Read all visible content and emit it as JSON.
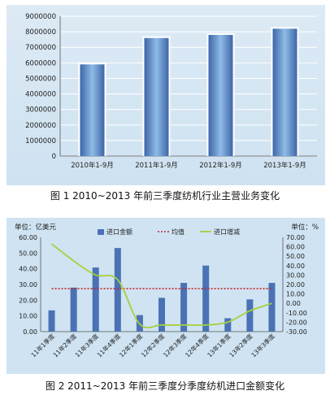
{
  "colors": {
    "panel_bg": "#d3e5f3",
    "bar_blue": "#4a72b4",
    "bar_gradient_light": "#8ebbe6",
    "avg_line": "#c0282e",
    "growth_line": "#a6d03c",
    "axis_text": "#222222"
  },
  "figure1": {
    "caption": "图 1  2010~2013 年前三季度纺机行业主营业务变化",
    "chart_data": {
      "type": "bar",
      "categories": [
        "2010年1-9月",
        "2011年1-9月",
        "2012年1-9月",
        "2013年1-9月"
      ],
      "values": [
        5900000,
        7600000,
        7800000,
        8200000
      ],
      "ylim": [
        0,
        9000000
      ],
      "yticks": [
        "0",
        "1000000",
        "2000000",
        "3000000",
        "4000000",
        "5000000",
        "6000000",
        "7000000",
        "8000000",
        "9000000"
      ],
      "grid": true,
      "legend": "none"
    }
  },
  "figure2": {
    "caption": "图 2  2011~2013 年前三季度分季度纺机进口金额变化",
    "left_unit": "单位：亿美元",
    "right_unit": "单位：%",
    "chart_data": {
      "type": "bar",
      "categories": [
        "11年1季度",
        "11年2季度",
        "11年3季度",
        "11年4季度",
        "12年1季度",
        "12年2季度",
        "12年3季度",
        "12年4季度",
        "13年1季度",
        "13年2季度",
        "13年3季度"
      ],
      "series": [
        {
          "name": "进口金额",
          "type": "bar",
          "axis": "left",
          "values": [
            13.5,
            28.0,
            40.8,
            53.2,
            10.5,
            21.5,
            31.0,
            42.0,
            8.5,
            20.5,
            31.0
          ]
        },
        {
          "name": "均值",
          "type": "line",
          "axis": "left",
          "style": "dotted",
          "values": [
            27.3,
            27.3,
            27.3,
            27.3,
            27.3,
            27.3,
            27.3,
            27.3,
            27.3,
            27.3,
            27.3
          ]
        },
        {
          "name": "进口增减",
          "type": "line",
          "axis": "right",
          "values": [
            63.0,
            45.0,
            30.0,
            25.0,
            -22.0,
            -23.0,
            -23.0,
            -23.0,
            -20.0,
            -8.0,
            0.0
          ]
        }
      ],
      "ylim_left": [
        0,
        60
      ],
      "ylim_right": [
        -30,
        70
      ],
      "yticks_left": [
        "0.00",
        "10.00",
        "20.00",
        "30.00",
        "40.00",
        "50.00",
        "60.00"
      ],
      "yticks_right": [
        "-30.00",
        "-20.00",
        "-10.00",
        "0.00",
        "10.00",
        "20.00",
        "30.00",
        "40.00",
        "50.00",
        "60.00",
        "70.00"
      ],
      "legend": "top-center",
      "grid": false
    }
  }
}
